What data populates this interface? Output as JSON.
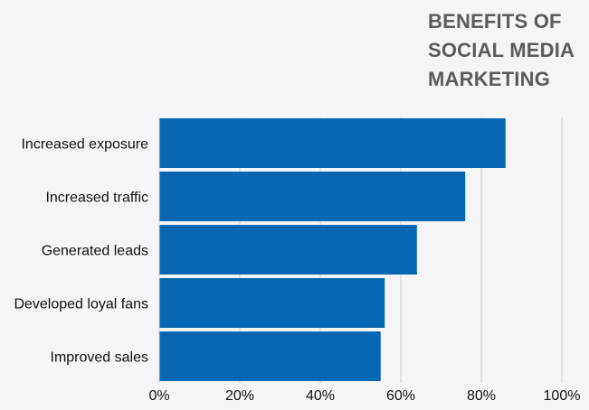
{
  "chart_data": {
    "type": "bar",
    "orientation": "horizontal",
    "title_lines": [
      "BENEFITS OF",
      "SOCIAL MEDIA",
      "MARKETING"
    ],
    "categories": [
      "Increased exposure",
      "Increased traffic",
      "Generated leads",
      "Developed loyal fans",
      "Improved sales"
    ],
    "values": [
      86,
      76,
      64,
      56,
      55
    ],
    "xlim": [
      0,
      100
    ],
    "x_ticks": [
      "0%",
      "20%",
      "40%",
      "60%",
      "80%",
      "100%"
    ],
    "grid": "vertical",
    "bar_color": "#0767b3",
    "grid_color": "#cfcfcf",
    "text_color": "#111111",
    "title_color": "#5b5b5b",
    "background": "#f5f5f8"
  }
}
